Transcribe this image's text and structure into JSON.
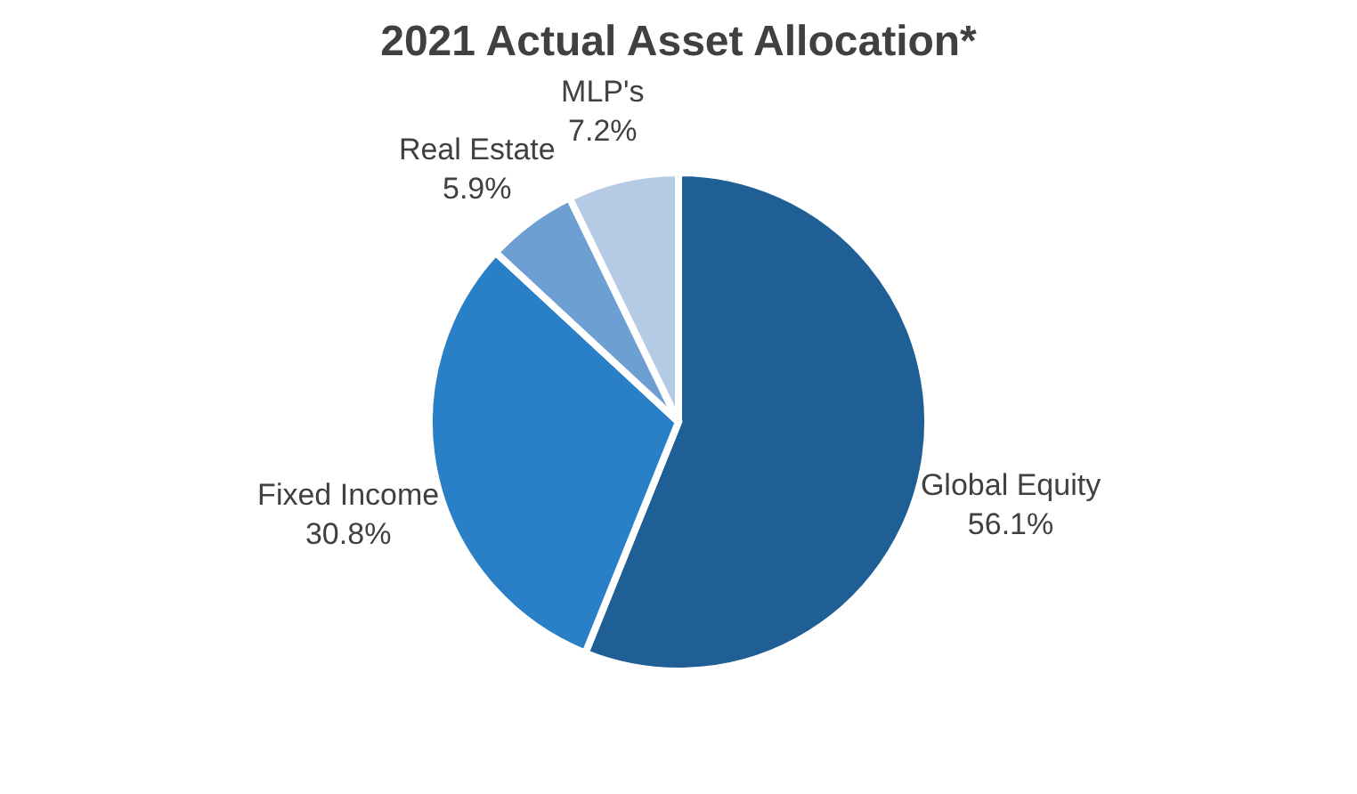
{
  "chart_data": {
    "type": "pie",
    "title": "2021 Actual Asset Allocation*",
    "categories": [
      "Global Equity",
      "Fixed Income",
      "Real Estate",
      "MLP's"
    ],
    "values": [
      56.1,
      30.8,
      5.9,
      7.2
    ],
    "value_labels": [
      "56.1%",
      "30.8%",
      "5.9%",
      "7.2%"
    ],
    "colors": [
      "#1f5f96",
      "#2a80c6",
      "#6e9fd2",
      "#b5cae5"
    ],
    "legend": false
  }
}
